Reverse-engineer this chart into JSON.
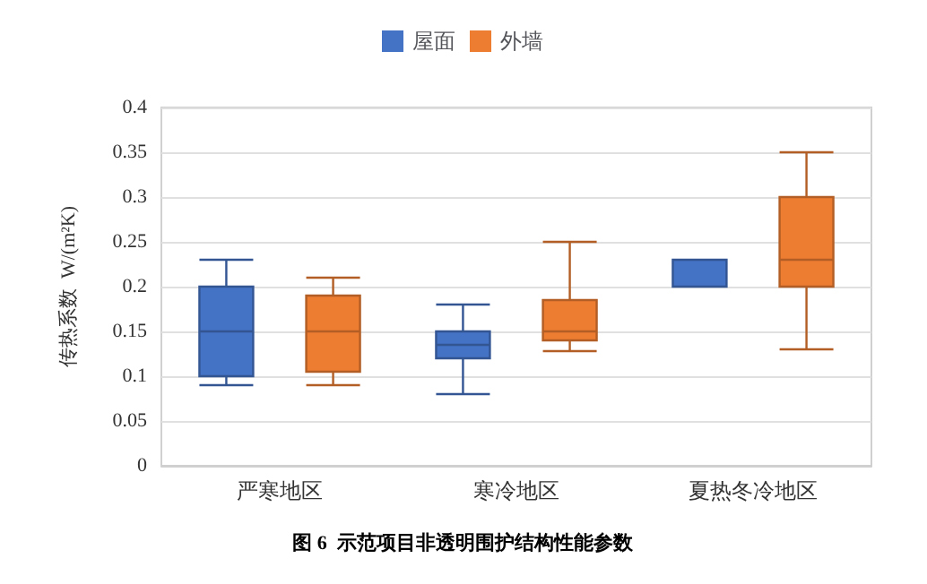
{
  "chart_data": {
    "type": "box",
    "title": "图 6  示范项目非透明围护结构性能参数",
    "ylabel": "传热系数  W/(m²K)",
    "categories": [
      "严寒地区",
      "寒冷地区",
      "夏热冬冷地区"
    ],
    "series": [
      {
        "name": "屋面",
        "color": "#4472c4",
        "boxes": [
          {
            "low": 0.09,
            "q1": 0.1,
            "median": 0.15,
            "q3": 0.2,
            "high": 0.23
          },
          {
            "low": 0.08,
            "q1": 0.12,
            "median": 0.135,
            "q3": 0.15,
            "high": 0.18
          },
          {
            "low": 0.2,
            "q1": 0.2,
            "median": 0.2,
            "q3": 0.23,
            "high": 0.23
          }
        ]
      },
      {
        "name": "外墙",
        "color": "#ed7d31",
        "boxes": [
          {
            "low": 0.09,
            "q1": 0.105,
            "median": 0.15,
            "q3": 0.19,
            "high": 0.21
          },
          {
            "low": 0.128,
            "q1": 0.14,
            "median": 0.15,
            "q3": 0.185,
            "high": 0.25
          },
          {
            "low": 0.13,
            "q1": 0.2,
            "median": 0.23,
            "q3": 0.3,
            "high": 0.35
          }
        ]
      }
    ],
    "ylim": [
      0,
      0.4
    ],
    "yticks": [
      0,
      0.05,
      0.1,
      0.15,
      0.2,
      0.25,
      0.3,
      0.35,
      0.4
    ],
    "grid": "y",
    "legend": "top"
  }
}
